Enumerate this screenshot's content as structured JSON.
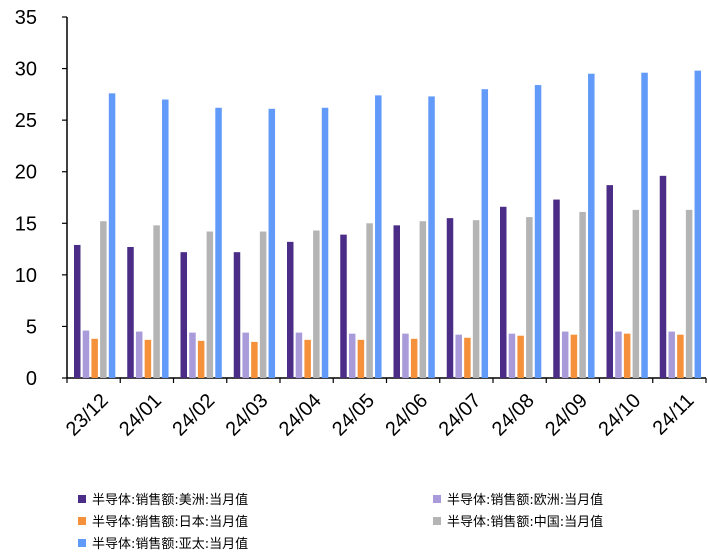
{
  "chart_data": {
    "type": "bar",
    "categories": [
      "23/12",
      "24/01",
      "24/02",
      "24/03",
      "24/04",
      "24/05",
      "24/06",
      "24/07",
      "24/08",
      "24/09",
      "24/10",
      "24/11"
    ],
    "ylim": [
      0,
      35
    ],
    "yticks": [
      0,
      5,
      10,
      15,
      20,
      25,
      30,
      35
    ],
    "grid": false,
    "legend_position": "bottom",
    "series": [
      {
        "name": "半导体:销售额:美洲:当月值",
        "color": "#4B2C86",
        "values": [
          12.9,
          12.7,
          12.2,
          12.2,
          13.2,
          13.9,
          14.8,
          15.5,
          16.6,
          17.3,
          18.7,
          19.6
        ]
      },
      {
        "name": "半导体:销售额:欧洲:当月值",
        "color": "#A99BD9",
        "values": [
          4.6,
          4.5,
          4.4,
          4.4,
          4.4,
          4.3,
          4.3,
          4.2,
          4.3,
          4.5,
          4.5,
          4.5
        ]
      },
      {
        "name": "半导体:销售额:日本:当月值",
        "color": "#F5913B",
        "values": [
          3.8,
          3.7,
          3.6,
          3.5,
          3.7,
          3.7,
          3.8,
          3.9,
          4.1,
          4.2,
          4.3,
          4.2
        ]
      },
      {
        "name": "半导体:销售额:中国:当月值",
        "color": "#B4B4B4",
        "values": [
          15.2,
          14.8,
          14.2,
          14.2,
          14.3,
          15.0,
          15.2,
          15.3,
          15.6,
          16.1,
          16.3,
          16.3
        ]
      },
      {
        "name": "半导体:销售额:亚太:当月值",
        "color": "#619AF8",
        "values": [
          27.6,
          27.0,
          26.2,
          26.1,
          26.2,
          27.4,
          27.3,
          28.0,
          28.4,
          29.5,
          29.6,
          29.8
        ]
      }
    ]
  }
}
